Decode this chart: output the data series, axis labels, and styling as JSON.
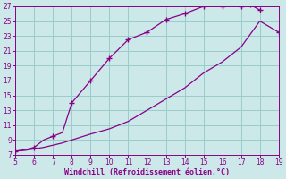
{
  "xlabel": "Windchill (Refroidissement éolien,°C)",
  "bg_color": "#cce8e8",
  "grid_color": "#99cccc",
  "line_color": "#880088",
  "upper_x": [
    5.0,
    5.3,
    5.7,
    6.0,
    6.5,
    7.0,
    7.5,
    8.0,
    9.0,
    10.0,
    11.0,
    12.0,
    13.0,
    14.0,
    15.0,
    16.0,
    17.0,
    17.5,
    18.0
  ],
  "upper_y": [
    7.5,
    7.6,
    7.8,
    8.0,
    9.0,
    9.5,
    10.0,
    14.0,
    17.0,
    20.0,
    22.5,
    23.5,
    25.2,
    26.0,
    27.0,
    27.0,
    27.0,
    27.2,
    26.5
  ],
  "lower_x": [
    5.0,
    5.5,
    6.0,
    6.5,
    7.0,
    7.5,
    8.0,
    9.0,
    10.0,
    11.0,
    12.0,
    13.0,
    14.0,
    15.0,
    16.0,
    17.0,
    18.0,
    19.0
  ],
  "lower_y": [
    7.5,
    7.6,
    7.8,
    8.0,
    8.3,
    8.6,
    9.0,
    9.8,
    10.5,
    11.5,
    13.0,
    14.5,
    16.0,
    18.0,
    19.5,
    21.5,
    25.0,
    23.5
  ],
  "marker_upper_x": [
    5.0,
    6.0,
    7.0,
    8.0,
    9.0,
    10.0,
    11.0,
    12.0,
    13.0,
    14.0,
    15.0,
    16.0,
    17.0,
    17.5,
    18.0
  ],
  "marker_upper_y": [
    7.5,
    8.0,
    9.5,
    14.0,
    17.0,
    20.0,
    22.5,
    23.5,
    25.2,
    26.0,
    27.0,
    27.0,
    27.0,
    27.2,
    26.5
  ],
  "marker_lower_x": [
    19.0
  ],
  "marker_lower_y": [
    23.5
  ],
  "xlim": [
    5,
    19
  ],
  "ylim": [
    7,
    27
  ],
  "xticks": [
    5,
    6,
    7,
    8,
    9,
    10,
    11,
    12,
    13,
    14,
    15,
    16,
    17,
    18,
    19
  ],
  "yticks": [
    7,
    9,
    11,
    13,
    15,
    17,
    19,
    21,
    23,
    25,
    27
  ],
  "tick_fontsize": 5.5,
  "xlabel_fontsize": 6.0,
  "linewidth": 0.9,
  "marker_size": 4,
  "marker_lw": 1.0
}
